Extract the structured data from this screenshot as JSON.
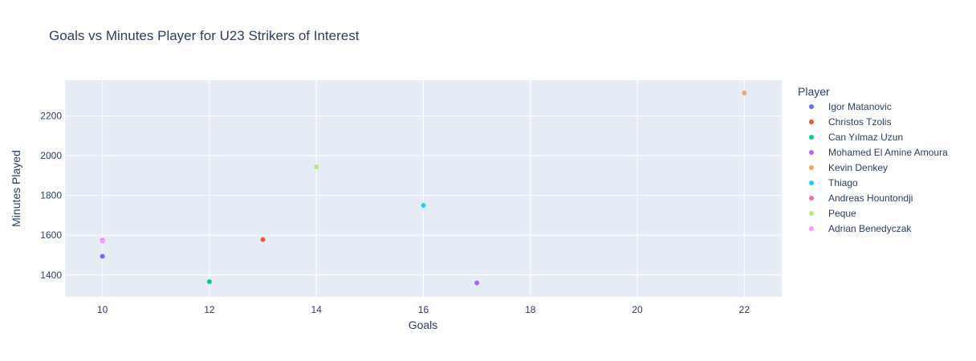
{
  "chart_data": {
    "type": "scatter",
    "title": "Goals vs Minutes Player for U23 Strikers of Interest",
    "xlabel": "Goals",
    "ylabel": "Minutes Played",
    "xlim": [
      9.3,
      22.7
    ],
    "ylim": [
      1290,
      2380
    ],
    "xticks": [
      10,
      12,
      14,
      16,
      18,
      20,
      22
    ],
    "yticks": [
      1400,
      1600,
      1800,
      2000,
      2200
    ],
    "grid": true,
    "plot_background": "#e5ecf6",
    "legend": {
      "title": "Player",
      "placement": "right"
    },
    "series": [
      {
        "name": "Igor Matanovic",
        "color": "#636efa",
        "x": [
          10
        ],
        "y": [
          1494
        ]
      },
      {
        "name": "Christos Tzolis",
        "color": "#ef553b",
        "x": [
          13
        ],
        "y": [
          1578
        ]
      },
      {
        "name": "Can Yılmaz Uzun",
        "color": "#00cc96",
        "x": [
          12
        ],
        "y": [
          1366
        ]
      },
      {
        "name": "Mohamed El Amine Amoura",
        "color": "#ab63fa",
        "x": [
          17
        ],
        "y": [
          1360
        ]
      },
      {
        "name": "Kevin Denkey",
        "color": "#ffa15a",
        "x": [
          22
        ],
        "y": [
          2316
        ]
      },
      {
        "name": "Thiago",
        "color": "#19d3f3",
        "x": [
          16
        ],
        "y": [
          1750
        ]
      },
      {
        "name": "Andreas Hountondji",
        "color": "#ff6692",
        "x": [
          10
        ],
        "y": [
          1574
        ]
      },
      {
        "name": "Peque",
        "color": "#b6e880",
        "x": [
          14
        ],
        "y": [
          1944
        ]
      },
      {
        "name": "Adrian Benedyczak",
        "color": "#ff97ff",
        "x": [
          10
        ],
        "y": [
          1570
        ]
      }
    ]
  }
}
